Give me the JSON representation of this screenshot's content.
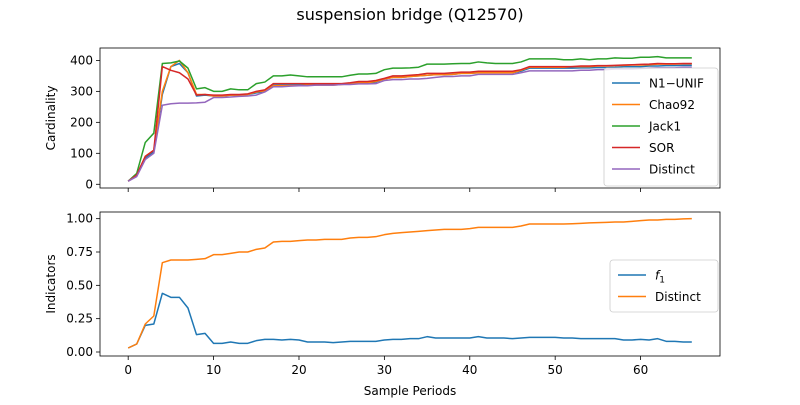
{
  "figure": {
    "title": "suspension bridge (Q12570)"
  },
  "chart_data": [
    {
      "type": "line",
      "title": "",
      "xlabel": "",
      "ylabel": "Cardinality",
      "xlim": [
        -3.3,
        69.3
      ],
      "ylim": [
        -12,
        440
      ],
      "xticks": [
        0,
        10,
        20,
        30,
        40,
        50,
        60
      ],
      "xtick_labels_visible": false,
      "yticks": [
        0,
        100,
        200,
        300,
        400
      ],
      "grid": false,
      "legend_position": "center-right",
      "x": [
        0,
        1,
        2,
        3,
        4,
        5,
        6,
        7,
        8,
        9,
        10,
        11,
        12,
        13,
        14,
        15,
        16,
        17,
        18,
        19,
        20,
        21,
        22,
        23,
        24,
        25,
        26,
        27,
        28,
        29,
        30,
        31,
        32,
        33,
        34,
        35,
        36,
        37,
        38,
        39,
        40,
        41,
        42,
        43,
        44,
        45,
        46,
        47,
        48,
        49,
        50,
        51,
        52,
        53,
        54,
        55,
        56,
        57,
        58,
        59,
        60,
        61,
        62,
        63,
        64,
        65,
        66
      ],
      "series": [
        {
          "name": "N1−UNIF",
          "color": "#1f77b4",
          "values": [
            10,
            30,
            85,
            105,
            290,
            380,
            390,
            360,
            285,
            288,
            285,
            285,
            288,
            288,
            290,
            295,
            300,
            320,
            320,
            320,
            320,
            322,
            322,
            322,
            323,
            323,
            325,
            328,
            328,
            330,
            340,
            345,
            345,
            348,
            350,
            352,
            354,
            354,
            355,
            358,
            358,
            360,
            360,
            360,
            360,
            360,
            365,
            375,
            375,
            375,
            375,
            375,
            375,
            376,
            376,
            377,
            377,
            378,
            380,
            380,
            380,
            382,
            382,
            383,
            383,
            384,
            384
          ]
        },
        {
          "name": "Chao92",
          "color": "#ff7f0e",
          "values": [
            10,
            30,
            90,
            110,
            300,
            380,
            400,
            360,
            290,
            290,
            285,
            285,
            288,
            288,
            290,
            298,
            302,
            318,
            318,
            318,
            318,
            320,
            320,
            320,
            320,
            322,
            325,
            328,
            328,
            332,
            340,
            345,
            345,
            348,
            350,
            352,
            354,
            354,
            355,
            358,
            358,
            360,
            360,
            360,
            360,
            360,
            368,
            378,
            378,
            378,
            378,
            378,
            380,
            380,
            380,
            382,
            382,
            383,
            384,
            385,
            385,
            386,
            388,
            388,
            388,
            389,
            389
          ]
        },
        {
          "name": "Jack1",
          "color": "#2ca02c",
          "values": [
            10,
            35,
            135,
            165,
            390,
            392,
            398,
            375,
            308,
            312,
            300,
            300,
            308,
            305,
            305,
            325,
            330,
            350,
            350,
            353,
            350,
            347,
            347,
            347,
            347,
            347,
            352,
            356,
            356,
            358,
            370,
            375,
            375,
            376,
            378,
            388,
            388,
            388,
            389,
            390,
            390,
            395,
            392,
            390,
            390,
            390,
            395,
            405,
            405,
            405,
            405,
            402,
            402,
            405,
            402,
            405,
            405,
            408,
            407,
            407,
            410,
            410,
            412,
            408,
            408,
            408,
            408
          ]
        },
        {
          "name": "SOR",
          "color": "#d62728",
          "values": [
            10,
            30,
            90,
            110,
            380,
            368,
            360,
            340,
            288,
            290,
            288,
            288,
            290,
            290,
            292,
            300,
            305,
            325,
            325,
            325,
            325,
            325,
            325,
            325,
            325,
            325,
            328,
            332,
            332,
            335,
            342,
            350,
            350,
            352,
            354,
            358,
            358,
            358,
            360,
            362,
            362,
            365,
            365,
            365,
            365,
            365,
            370,
            380,
            380,
            380,
            380,
            380,
            380,
            382,
            382,
            383,
            383,
            384,
            385,
            386,
            387,
            388,
            390,
            389,
            389,
            390,
            390
          ]
        },
        {
          "name": "Distinct",
          "color": "#9467bd",
          "values": [
            10,
            25,
            80,
            100,
            255,
            260,
            262,
            262,
            263,
            265,
            280,
            280,
            282,
            284,
            285,
            288,
            298,
            315,
            315,
            317,
            318,
            318,
            320,
            320,
            320,
            322,
            322,
            324,
            324,
            325,
            335,
            338,
            338,
            340,
            340,
            342,
            345,
            348,
            348,
            350,
            350,
            355,
            355,
            355,
            355,
            355,
            360,
            366,
            366,
            366,
            366,
            366,
            366,
            368,
            368,
            370,
            370,
            372,
            372,
            372,
            374,
            375,
            376,
            376,
            376,
            378,
            378
          ]
        }
      ]
    },
    {
      "type": "line",
      "title": "",
      "xlabel": "Sample Periods",
      "ylabel": "Indicators",
      "xlim": [
        -3.3,
        69.3
      ],
      "ylim": [
        -0.03,
        1.05
      ],
      "xticks": [
        0,
        10,
        20,
        30,
        40,
        50,
        60
      ],
      "yticks": [
        0.0,
        0.25,
        0.5,
        0.75,
        1.0
      ],
      "grid": false,
      "legend_position": "center-right",
      "x": [
        0,
        1,
        2,
        3,
        4,
        5,
        6,
        7,
        8,
        9,
        10,
        11,
        12,
        13,
        14,
        15,
        16,
        17,
        18,
        19,
        20,
        21,
        22,
        23,
        24,
        25,
        26,
        27,
        28,
        29,
        30,
        31,
        32,
        33,
        34,
        35,
        36,
        37,
        38,
        39,
        40,
        41,
        42,
        43,
        44,
        45,
        46,
        47,
        48,
        49,
        50,
        51,
        52,
        53,
        54,
        55,
        56,
        57,
        58,
        59,
        60,
        61,
        62,
        63,
        64,
        65,
        66
      ],
      "series": [
        {
          "name": "f1",
          "color": "#1f77b4",
          "values": [
            0.03,
            0.06,
            0.2,
            0.21,
            0.44,
            0.41,
            0.41,
            0.33,
            0.13,
            0.14,
            0.065,
            0.065,
            0.075,
            0.065,
            0.065,
            0.085,
            0.095,
            0.095,
            0.09,
            0.095,
            0.09,
            0.075,
            0.075,
            0.075,
            0.07,
            0.075,
            0.08,
            0.08,
            0.08,
            0.08,
            0.09,
            0.095,
            0.095,
            0.1,
            0.1,
            0.115,
            0.105,
            0.105,
            0.105,
            0.105,
            0.105,
            0.115,
            0.105,
            0.105,
            0.105,
            0.1,
            0.105,
            0.11,
            0.11,
            0.11,
            0.11,
            0.105,
            0.105,
            0.1,
            0.1,
            0.1,
            0.1,
            0.1,
            0.09,
            0.09,
            0.095,
            0.09,
            0.1,
            0.08,
            0.08,
            0.075,
            0.075
          ]
        },
        {
          "name": "Distinct",
          "color": "#ff7f0e",
          "values": [
            0.03,
            0.06,
            0.21,
            0.27,
            0.67,
            0.69,
            0.69,
            0.69,
            0.695,
            0.7,
            0.73,
            0.73,
            0.74,
            0.75,
            0.75,
            0.77,
            0.78,
            0.825,
            0.83,
            0.83,
            0.835,
            0.84,
            0.84,
            0.845,
            0.845,
            0.845,
            0.855,
            0.86,
            0.86,
            0.865,
            0.88,
            0.89,
            0.895,
            0.9,
            0.905,
            0.91,
            0.915,
            0.92,
            0.92,
            0.92,
            0.925,
            0.935,
            0.935,
            0.935,
            0.935,
            0.935,
            0.945,
            0.96,
            0.96,
            0.96,
            0.96,
            0.96,
            0.962,
            0.965,
            0.968,
            0.97,
            0.972,
            0.975,
            0.975,
            0.98,
            0.985,
            0.99,
            0.99,
            0.995,
            0.995,
            0.998,
            1.0
          ]
        }
      ]
    }
  ]
}
